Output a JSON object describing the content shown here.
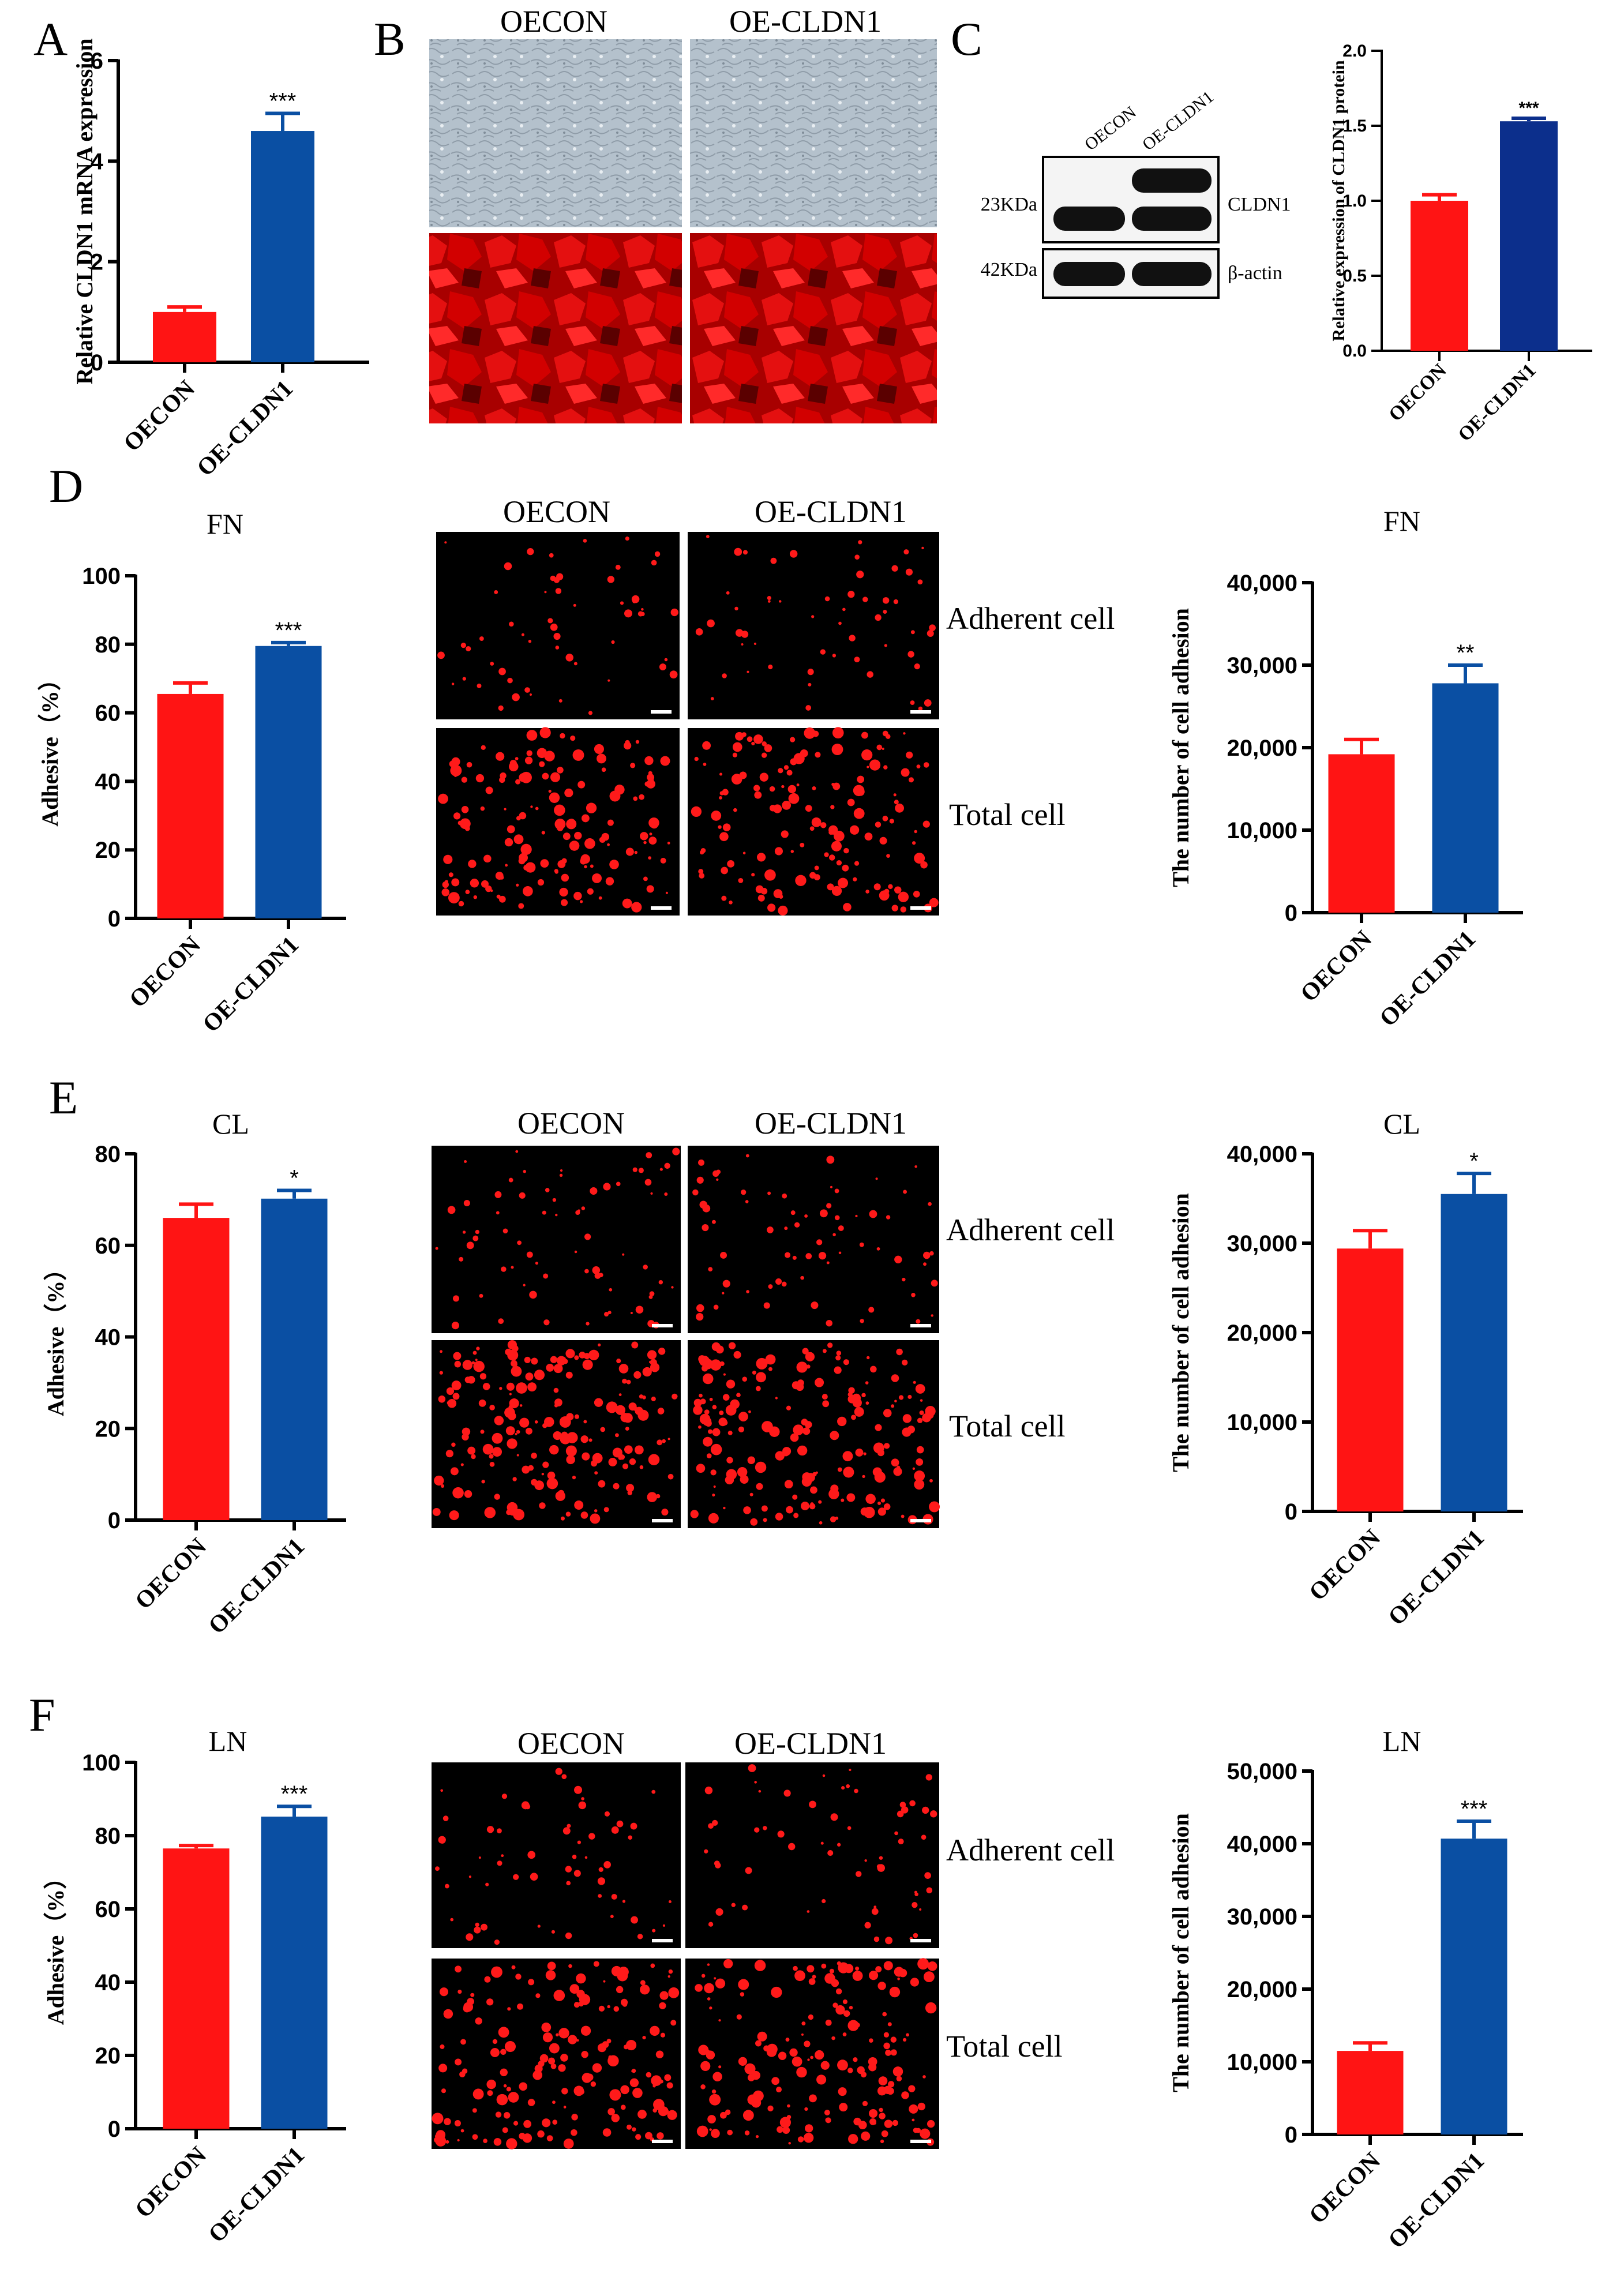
{
  "panels": {
    "A": "A",
    "B": "B",
    "C": "C",
    "D": "D",
    "E": "E",
    "F": "F"
  },
  "colors": {
    "oecon": "#ff1414",
    "oe_cldn1": "#0a4fa3",
    "oe_cldn1_dark": "#0c2f8c",
    "fluor_bg": "#000000",
    "fluor_cell": "#ff1a1a",
    "phase_bg": "#b4c1cc"
  },
  "micrograph_headers": {
    "oecon": "OECON",
    "oe_cldn1": "OE-CLDN1"
  },
  "row_labels": {
    "adherent": "Adherent cell",
    "total": "Total cell"
  },
  "western_blot": {
    "lanes": [
      "OECON",
      "OE-CLDN1"
    ],
    "mw_top": "23KDa",
    "mw_bottom": "42KDa",
    "protein_top": "CLDN1",
    "protein_bottom": "β-actin"
  },
  "chart_data": [
    {
      "id": "A",
      "type": "bar",
      "title": "",
      "categories": [
        "OECON",
        "OE-CLDN1"
      ],
      "values": [
        1.0,
        4.6
      ],
      "errors": [
        0.1,
        0.35
      ],
      "significance": "***",
      "ylabel": "Relative CLDN1 mRNA expression",
      "ylim": [
        0,
        6
      ],
      "yticks": [
        "0",
        "2",
        "4",
        "6"
      ],
      "ytick_values": [
        0,
        2,
        4,
        6
      ]
    },
    {
      "id": "C",
      "type": "bar",
      "title": "",
      "categories": [
        "OECON",
        "OE-CLDN1"
      ],
      "values": [
        1.0,
        1.53
      ],
      "errors": [
        0.04,
        0.02
      ],
      "significance": "***",
      "ylabel": "Relative expression of CLDN1 protein",
      "ylim": [
        0,
        2.0
      ],
      "yticks": [
        "0.0",
        "0.5",
        "1.0",
        "1.5",
        "2.0"
      ],
      "ytick_values": [
        0,
        0.5,
        1.0,
        1.5,
        2.0
      ]
    },
    {
      "id": "D_left",
      "type": "bar",
      "title": "FN",
      "categories": [
        "OECON",
        "OE-CLDN1"
      ],
      "values": [
        65.5,
        79.5
      ],
      "errors": [
        3.2,
        1.0
      ],
      "significance": "***",
      "ylabel": "Adhesive（%）",
      "ylim": [
        0,
        100
      ],
      "yticks": [
        "0",
        "20",
        "40",
        "60",
        "80",
        "100"
      ],
      "ytick_values": [
        0,
        20,
        40,
        60,
        80,
        100
      ]
    },
    {
      "id": "D_right",
      "type": "bar",
      "title": "FN",
      "categories": [
        "OECON",
        "OE-CLDN1"
      ],
      "values": [
        19200,
        27800
      ],
      "errors": [
        1800,
        2200
      ],
      "significance": "**",
      "ylabel": "The number of cell adhesion",
      "ylim": [
        0,
        40000
      ],
      "yticks": [
        "0",
        "10,000",
        "20,000",
        "30,000",
        "40,000"
      ],
      "ytick_values": [
        0,
        10000,
        20000,
        30000,
        40000
      ]
    },
    {
      "id": "E_left",
      "type": "bar",
      "title": "CL",
      "categories": [
        "OECON",
        "OE-CLDN1"
      ],
      "values": [
        66,
        70.2
      ],
      "errors": [
        3.0,
        1.8
      ],
      "significance": "*",
      "ylabel": "Adhesive（%）",
      "ylim": [
        0,
        80
      ],
      "yticks": [
        "0",
        "20",
        "40",
        "60",
        "80"
      ],
      "ytick_values": [
        0,
        20,
        40,
        60,
        80
      ]
    },
    {
      "id": "E_right",
      "type": "bar",
      "title": "CL",
      "categories": [
        "OECON",
        "OE-CLDN1"
      ],
      "values": [
        29400,
        35500
      ],
      "errors": [
        2000,
        2300
      ],
      "significance": "*",
      "ylabel": "The number of cell adhesion",
      "ylim": [
        0,
        40000
      ],
      "yticks": [
        "0",
        "10,000",
        "20,000",
        "30,000",
        "40,000"
      ],
      "ytick_values": [
        0,
        10000,
        20000,
        30000,
        40000
      ]
    },
    {
      "id": "F_left",
      "type": "bar",
      "title": "LN",
      "categories": [
        "OECON",
        "OE-CLDN1"
      ],
      "values": [
        76.5,
        85.2
      ],
      "errors": [
        0.8,
        2.8
      ],
      "significance": "***",
      "ylabel": "Adhesive（%）",
      "ylim": [
        0,
        100
      ],
      "yticks": [
        "0",
        "20",
        "40",
        "60",
        "80",
        "100"
      ],
      "ytick_values": [
        0,
        20,
        40,
        60,
        80,
        100
      ]
    },
    {
      "id": "F_right",
      "type": "bar",
      "title": "LN",
      "categories": [
        "OECON",
        "OE-CLDN1"
      ],
      "values": [
        11500,
        40700
      ],
      "errors": [
        1100,
        2400
      ],
      "significance": "***",
      "ylabel": "The number of cell adhesion",
      "ylim": [
        0,
        50000
      ],
      "yticks": [
        "0",
        "10,000",
        "20,000",
        "30,000",
        "40,000",
        "50,000"
      ],
      "ytick_values": [
        0,
        10000,
        20000,
        30000,
        40000,
        50000
      ]
    }
  ]
}
